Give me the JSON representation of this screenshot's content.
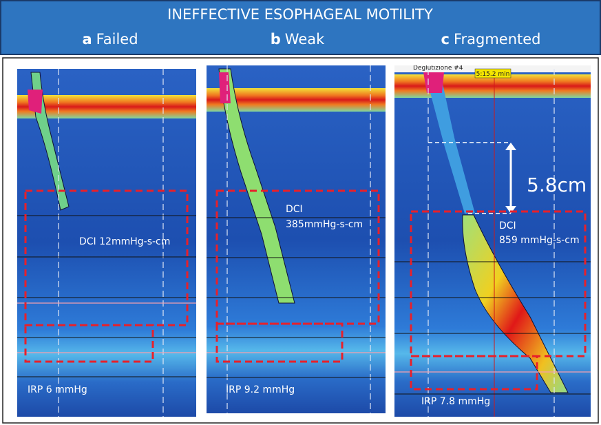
{
  "header": {
    "title": "INEFFECTIVE ESOPHAGEAL MOTILITY",
    "panels": [
      {
        "letter": "a",
        "label": "Failed"
      },
      {
        "letter": "b",
        "label": "Weak"
      },
      {
        "letter": "c",
        "label": "Fragmented"
      }
    ]
  },
  "panels": [
    {
      "dci": "DCI 12mmHg-s-cm",
      "irp": "IRP 6 mmHg"
    },
    {
      "dci_title": "DCI",
      "dci_value": "385mmHg-s-cm",
      "irp": "IRP 9.2 mmHg"
    },
    {
      "top_label": "Deglutizione #4",
      "time": "5:15.2 min",
      "distance": "5.8cm",
      "dci_title": "DCI",
      "dci_value": "859 mmHg-s-cm",
      "irp": "IRP 7.8 mmHg"
    }
  ]
}
